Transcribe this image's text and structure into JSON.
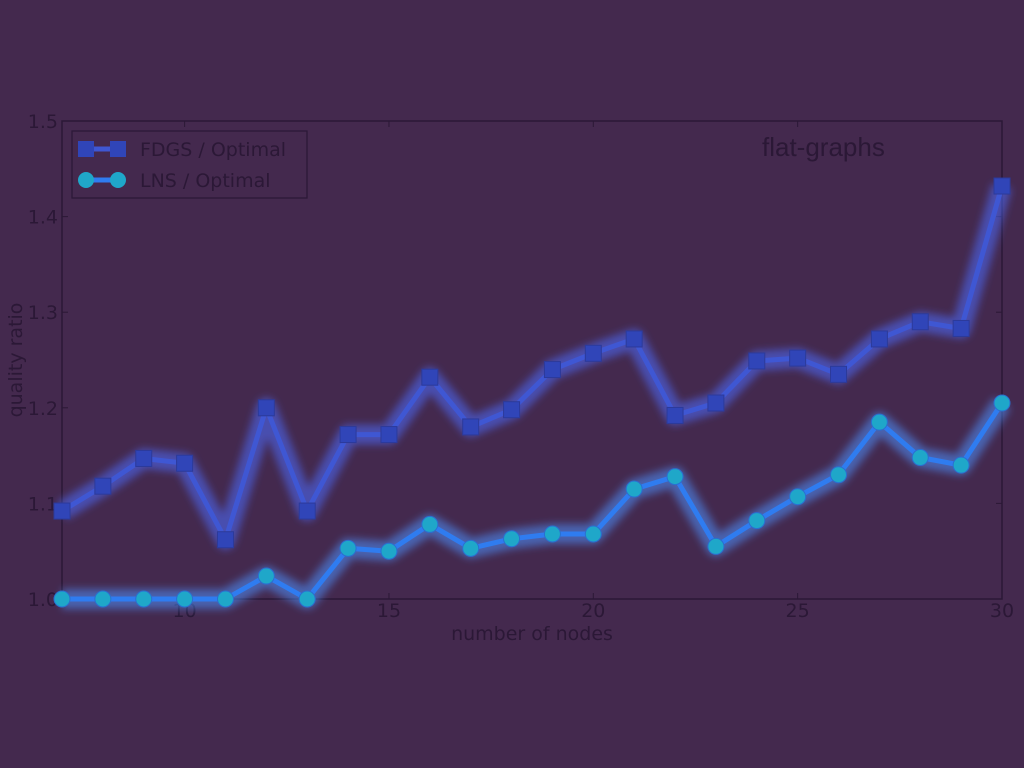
{
  "colors": {
    "background": "#44294e",
    "frame": "#2b1836",
    "fdgs_line": "#3f57d3",
    "fdgs_marker": "#3045b8",
    "fdgs_glow": "#4a6cff",
    "lns_line": "#2f7cf0",
    "lns_marker": "#1fa7c9",
    "lns_glow": "#4d92ff"
  },
  "chart_data": {
    "type": "line",
    "title": "",
    "annotation": "flat-graphs",
    "xlabel": "number of nodes",
    "ylabel": "quality ratio",
    "xlim": [
      7,
      30
    ],
    "ylim": [
      1.0,
      1.5
    ],
    "xticks": [
      10,
      15,
      20,
      25,
      30
    ],
    "yticks": [
      1.0,
      1.1,
      1.2,
      1.3,
      1.4,
      1.5
    ],
    "grid": false,
    "legend_position": "top-left",
    "x": [
      7,
      8,
      9,
      10,
      11,
      12,
      13,
      14,
      15,
      16,
      17,
      18,
      19,
      20,
      21,
      22,
      23,
      24,
      25,
      26,
      27,
      28,
      29,
      30
    ],
    "series": [
      {
        "name": "FDGS / Optimal",
        "marker": "square",
        "values": [
          1.092,
          1.118,
          1.147,
          1.142,
          1.062,
          1.2,
          1.092,
          1.172,
          1.172,
          1.232,
          1.18,
          1.198,
          1.24,
          1.257,
          1.272,
          1.192,
          1.205,
          1.249,
          1.252,
          1.235,
          1.272,
          1.29,
          1.283,
          1.432
        ]
      },
      {
        "name": "LNS / Optimal",
        "marker": "circle",
        "values": [
          1.0,
          1.0,
          1.0,
          1.0,
          1.0,
          1.024,
          1.0,
          1.053,
          1.05,
          1.078,
          1.053,
          1.063,
          1.068,
          1.068,
          1.115,
          1.128,
          1.055,
          1.082,
          1.107,
          1.13,
          1.185,
          1.148,
          1.14,
          1.205
        ]
      }
    ]
  }
}
